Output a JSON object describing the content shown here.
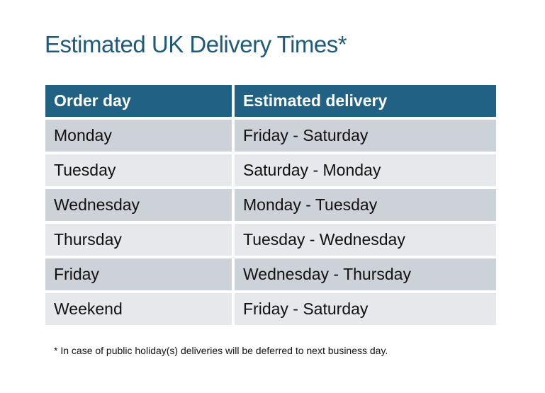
{
  "title": "Estimated UK Delivery Times*",
  "table": {
    "headers": [
      "Order day",
      "Estimated delivery"
    ],
    "rows": [
      [
        "Monday",
        "Friday - Saturday"
      ],
      [
        "Tuesday",
        "Saturday - Monday"
      ],
      [
        "Wednesday",
        "Monday - Tuesday"
      ],
      [
        "Thursday",
        "Tuesday - Wednesday"
      ],
      [
        "Friday",
        "Wednesday - Thursday"
      ],
      [
        "Weekend",
        "Friday - Saturday"
      ]
    ]
  },
  "footnote": "* In case of public holiday(s) deliveries will be deferred to next business day.",
  "colors": {
    "header": "#216183",
    "title": "#1f5a78",
    "row_odd": "#cdd1d8",
    "row_even": "#e6e8eb"
  }
}
